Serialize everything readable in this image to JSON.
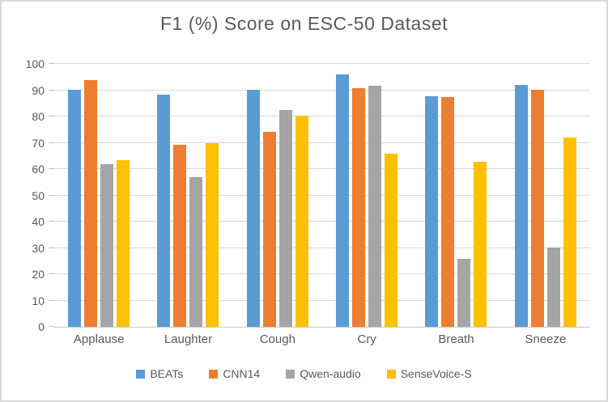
{
  "chart_data": {
    "type": "bar",
    "title": "F1 (%) Score on ESC-50 Dataset",
    "categories": [
      "Applause",
      "Laughter",
      "Cough",
      "Cry",
      "Breath",
      "Sneeze"
    ],
    "series": [
      {
        "name": "BEATs",
        "color": "#5B9BD5",
        "values": [
          90.3,
          88.3,
          90.2,
          96.0,
          87.7,
          91.9
        ]
      },
      {
        "name": "CNN14",
        "color": "#ED7D31",
        "values": [
          93.9,
          69.3,
          74.2,
          90.9,
          87.4,
          90.2
        ]
      },
      {
        "name": "Qwen-audio",
        "color": "#A5A5A5",
        "values": [
          61.7,
          57.0,
          82.4,
          91.6,
          25.8,
          30.1
        ]
      },
      {
        "name": "SenseVoice-S",
        "color": "#FFC000",
        "values": [
          63.3,
          69.8,
          80.4,
          65.8,
          62.7,
          71.9
        ]
      }
    ],
    "xlabel": "",
    "ylabel": "",
    "ylim": [
      0,
      100
    ],
    "y_ticks": [
      0,
      10,
      20,
      30,
      40,
      50,
      60,
      70,
      80,
      90,
      100
    ],
    "grid": true,
    "legend_position": "bottom"
  },
  "colors": {
    "background": "#FFFFFF",
    "border": "#D9D9D9",
    "gridline": "#D9D9D9",
    "axis_line": "#C6C6C6",
    "text": "#595959"
  }
}
